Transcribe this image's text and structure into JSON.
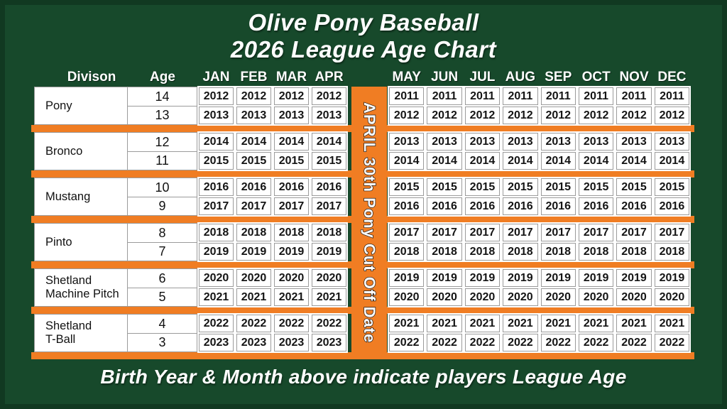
{
  "title": {
    "line1": "Olive Pony Baseball",
    "line2": "2026 League Age Chart"
  },
  "header": {
    "division": "Divison",
    "age": "Age"
  },
  "banner": {
    "text": "APRIL 30th Pony Cut Off Date"
  },
  "footer": {
    "note": "Birth Year & Month above indicate players League Age"
  },
  "colors": {
    "background_green": "#17492B",
    "accent_orange": "#F07D23",
    "cell_background": "#FFFFFF",
    "cell_border": "#9B9B9B",
    "text_dark": "#141414",
    "text_light": "#FFFFFF"
  },
  "chart_data": {
    "type": "table",
    "title": "Olive Pony Baseball 2026 League Age Chart",
    "columns": [
      "Divison",
      "Age",
      "JAN",
      "FEB",
      "MAR",
      "APR",
      "MAY",
      "JUN",
      "JUL",
      "AUG",
      "SEP",
      "OCT",
      "NOV",
      "DEC"
    ],
    "months": [
      "JAN",
      "FEB",
      "MAR",
      "APR",
      "MAY",
      "JUN",
      "JUL",
      "AUG",
      "SEP",
      "OCT",
      "NOV",
      "DEC"
    ],
    "cutoff_label": "APRIL 30th Pony Cut Off Date",
    "note": "Birth Year & Month above indicate players League Age",
    "groups": [
      {
        "division": "Pony",
        "division_lines": [
          "Pony"
        ],
        "rows": [
          {
            "age": "14",
            "months": [
              "2012",
              "2012",
              "2012",
              "2012",
              "2011",
              "2011",
              "2011",
              "2011",
              "2011",
              "2011",
              "2011",
              "2011"
            ]
          },
          {
            "age": "13",
            "months": [
              "2013",
              "2013",
              "2013",
              "2013",
              "2012",
              "2012",
              "2012",
              "2012",
              "2012",
              "2012",
              "2012",
              "2012"
            ]
          }
        ]
      },
      {
        "division": "Bronco",
        "division_lines": [
          "Bronco"
        ],
        "rows": [
          {
            "age": "12",
            "months": [
              "2014",
              "2014",
              "2014",
              "2014",
              "2013",
              "2013",
              "2013",
              "2013",
              "2013",
              "2013",
              "2013",
              "2013"
            ]
          },
          {
            "age": "11",
            "months": [
              "2015",
              "2015",
              "2015",
              "2015",
              "2014",
              "2014",
              "2014",
              "2014",
              "2014",
              "2014",
              "2014",
              "2014"
            ]
          }
        ]
      },
      {
        "division": "Mustang",
        "division_lines": [
          "Mustang"
        ],
        "rows": [
          {
            "age": "10",
            "months": [
              "2016",
              "2016",
              "2016",
              "2016",
              "2015",
              "2015",
              "2015",
              "2015",
              "2015",
              "2015",
              "2015",
              "2015"
            ]
          },
          {
            "age": "9",
            "months": [
              "2017",
              "2017",
              "2017",
              "2017",
              "2016",
              "2016",
              "2016",
              "2016",
              "2016",
              "2016",
              "2016",
              "2016"
            ]
          }
        ]
      },
      {
        "division": "Pinto",
        "division_lines": [
          "Pinto"
        ],
        "rows": [
          {
            "age": "8",
            "months": [
              "2018",
              "2018",
              "2018",
              "2018",
              "2017",
              "2017",
              "2017",
              "2017",
              "2017",
              "2017",
              "2017",
              "2017"
            ]
          },
          {
            "age": "7",
            "months": [
              "2019",
              "2019",
              "2019",
              "2019",
              "2018",
              "2018",
              "2018",
              "2018",
              "2018",
              "2018",
              "2018",
              "2018"
            ]
          }
        ]
      },
      {
        "division": "Shetland Machine Pitch",
        "division_lines": [
          "Shetland",
          "Machine Pitch"
        ],
        "rows": [
          {
            "age": "6",
            "months": [
              "2020",
              "2020",
              "2020",
              "2020",
              "2019",
              "2019",
              "2019",
              "2019",
              "2019",
              "2019",
              "2019",
              "2019"
            ]
          },
          {
            "age": "5",
            "months": [
              "2021",
              "2021",
              "2021",
              "2021",
              "2020",
              "2020",
              "2020",
              "2020",
              "2020",
              "2020",
              "2020",
              "2020"
            ]
          }
        ]
      },
      {
        "division": "Shetland T-Ball",
        "division_lines": [
          "Shetland",
          "T-Ball"
        ],
        "rows": [
          {
            "age": "4",
            "months": [
              "2022",
              "2022",
              "2022",
              "2022",
              "2021",
              "2021",
              "2021",
              "2021",
              "2021",
              "2021",
              "2021",
              "2021"
            ]
          },
          {
            "age": "3",
            "months": [
              "2023",
              "2023",
              "2023",
              "2023",
              "2022",
              "2022",
              "2022",
              "2022",
              "2022",
              "2022",
              "2022",
              "2022"
            ]
          }
        ]
      }
    ]
  }
}
